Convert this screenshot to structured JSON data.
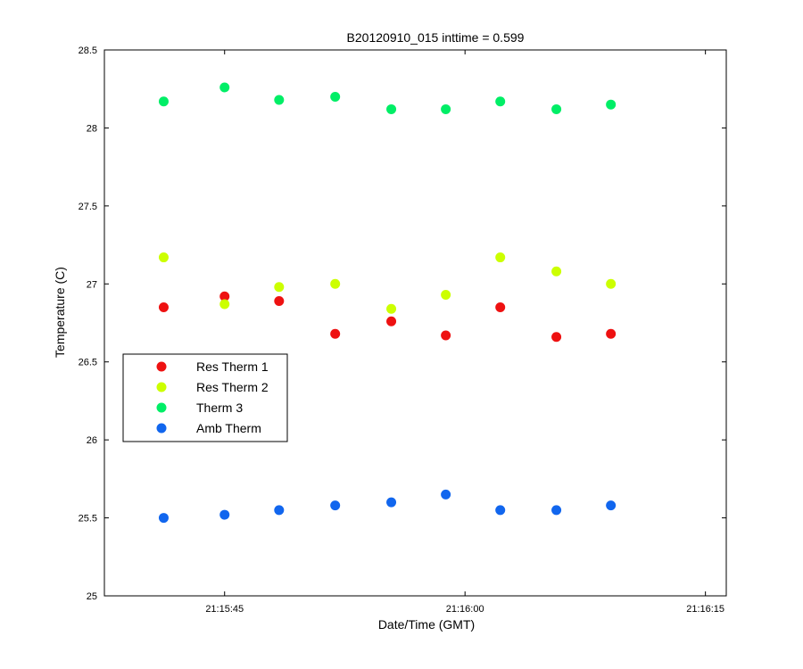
{
  "chart_data": {
    "type": "scatter",
    "title": "B20120910_015 inttime = 0.599",
    "xlabel": "Date/Time (GMT)",
    "ylabel": "Temperature (C)",
    "xlim": [
      "21:15:37.5",
      "21:16:16.3"
    ],
    "ylim": [
      25,
      28.5
    ],
    "x_ticks": [
      "21:15:45",
      "21:16:00",
      "21:16:15"
    ],
    "y_ticks": [
      "25",
      "25.5",
      "26",
      "26.5",
      "27",
      "27.5",
      "28",
      "28.5"
    ],
    "x": [
      "21:15:41.2",
      "21:15:45.0",
      "21:15:48.4",
      "21:15:51.9",
      "21:15:55.4",
      "21:15:58.8",
      "21:16:02.2",
      "21:16:05.7",
      "21:16:09.1"
    ],
    "legend_position": "left",
    "series": [
      {
        "name": "Res Therm 1",
        "color": "#ee1111",
        "values": [
          26.85,
          26.92,
          26.89,
          26.68,
          26.76,
          26.67,
          26.85,
          26.66,
          26.68
        ]
      },
      {
        "name": "Res Therm 2",
        "color": "#ccff00",
        "values": [
          27.17,
          26.87,
          26.98,
          27.0,
          26.84,
          26.93,
          27.17,
          27.08,
          27.0
        ]
      },
      {
        "name": "Therm 3",
        "color": "#00ee66",
        "values": [
          28.17,
          28.26,
          28.18,
          28.2,
          28.12,
          28.12,
          28.17,
          28.12,
          28.15
        ]
      },
      {
        "name": "Amb Therm",
        "color": "#1166ee",
        "values": [
          25.5,
          25.52,
          25.55,
          25.58,
          25.6,
          25.65,
          25.55,
          25.55,
          25.58
        ]
      }
    ],
    "grid": false
  }
}
